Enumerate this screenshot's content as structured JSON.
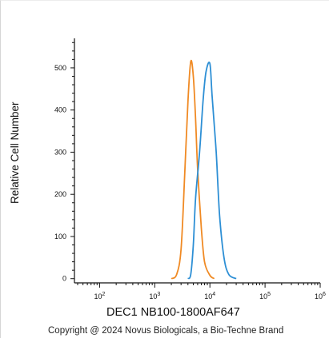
{
  "chart_data": {
    "type": "line",
    "xlabel": "DEC1 NB100-1800AF647",
    "ylabel": "Relative Cell Number",
    "x_scale": "log",
    "xlim": [
      35,
      1000000
    ],
    "ylim": [
      -10,
      570
    ],
    "x_ticks": [
      "10^2",
      "10^3",
      "10^4",
      "10^5",
      "10^6"
    ],
    "y_ticks": [
      0,
      100,
      200,
      300,
      400,
      500
    ],
    "series": [
      {
        "color": "#f08a24",
        "points": [
          [
            2000,
            0
          ],
          [
            2500,
            10
          ],
          [
            3000,
            70
          ],
          [
            3500,
            250
          ],
          [
            4000,
            420
          ],
          [
            4500,
            515
          ],
          [
            5000,
            480
          ],
          [
            5500,
            380
          ],
          [
            6000,
            260
          ],
          [
            7000,
            120
          ],
          [
            8000,
            40
          ],
          [
            10000,
            8
          ],
          [
            12000,
            0
          ]
        ]
      },
      {
        "color": "#2d8fd5",
        "points": [
          [
            4000,
            0
          ],
          [
            4500,
            10
          ],
          [
            5000,
            80
          ],
          [
            5500,
            190
          ],
          [
            6500,
            300
          ],
          [
            7500,
            420
          ],
          [
            8500,
            490
          ],
          [
            10000,
            510
          ],
          [
            11000,
            430
          ],
          [
            13000,
            300
          ],
          [
            15000,
            150
          ],
          [
            18000,
            50
          ],
          [
            22000,
            10
          ],
          [
            30000,
            0
          ]
        ]
      }
    ]
  },
  "footer": {
    "copyright": "Copyright @ 2024 Novus Biologicals, a Bio-Techne Brand"
  }
}
